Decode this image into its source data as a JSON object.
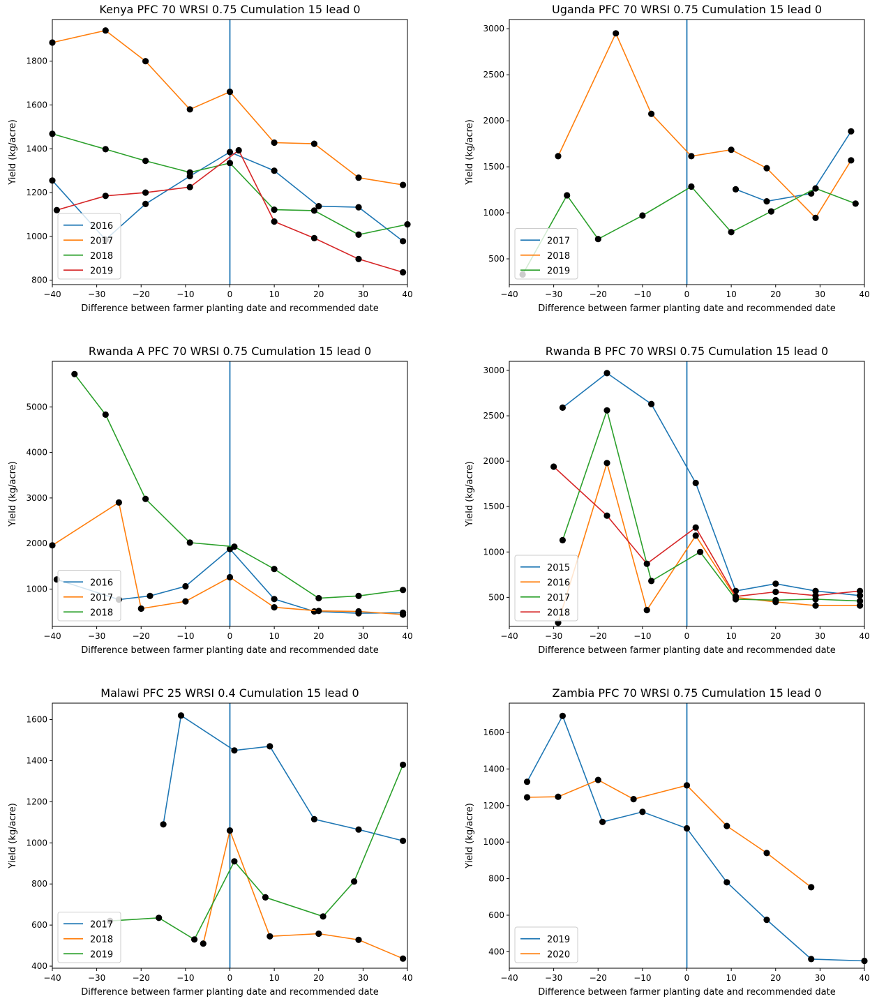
{
  "figure": {
    "palette": {
      "blue": "#1f77b4",
      "orange": "#ff7f0e",
      "green": "#2ca02c",
      "red": "#d62728",
      "marker": "#000000"
    },
    "vline_x": 0,
    "xticks": [
      "−40",
      "−30",
      "−20",
      "−10",
      "0",
      "10",
      "20",
      "30",
      "40"
    ]
  },
  "chart_data": [
    {
      "type": "line",
      "title": "Kenya PFC 70 WRSI 0.75 Cumulation 15 lead 0",
      "xlabel": "Difference between farmer planting date and recommended date",
      "ylabel": "Yield (kg/acre)",
      "xlim": [
        -40,
        40
      ],
      "ylim": [
        780,
        1990
      ],
      "yticks": [
        800,
        1000,
        1200,
        1400,
        1600,
        1800
      ],
      "legend_position": "lower-left",
      "series": [
        {
          "name": "2016",
          "color": "#1f77b4",
          "x": [
            -40,
            -28,
            -19,
            -9,
            0,
            10,
            20,
            29,
            39
          ],
          "y": [
            1255,
            985,
            1148,
            1275,
            1385,
            1300,
            1138,
            1133,
            978
          ]
        },
        {
          "name": "2017",
          "color": "#ff7f0e",
          "x": [
            -40,
            -28,
            -19,
            -9,
            0,
            10,
            19,
            29,
            39
          ],
          "y": [
            1885,
            1940,
            1800,
            1580,
            1660,
            1428,
            1423,
            1268,
            1235
          ]
        },
        {
          "name": "2018",
          "color": "#2ca02c",
          "x": [
            -40,
            -28,
            -19,
            -9,
            0,
            10,
            19,
            29,
            40
          ],
          "y": [
            1468,
            1398,
            1345,
            1292,
            1335,
            1122,
            1118,
            1008,
            1055
          ]
        },
        {
          "name": "2019",
          "color": "#d62728",
          "x": [
            -39,
            -28,
            -19,
            -9,
            2,
            10,
            19,
            29,
            39
          ],
          "y": [
            1120,
            1185,
            1200,
            1225,
            1393,
            1068,
            992,
            897,
            836
          ]
        }
      ]
    },
    {
      "type": "line",
      "title": "Uganda PFC 70 WRSI 0.75 Cumulation 15 lead 0",
      "xlabel": "Difference between farmer planting date and recommended date",
      "ylabel": "Yield (kg/acre)",
      "xlim": [
        -40,
        40
      ],
      "ylim": [
        220,
        3100
      ],
      "yticks": [
        500,
        1000,
        1500,
        2000,
        2500,
        3000
      ],
      "legend_position": "lower-left",
      "series": [
        {
          "name": "2017",
          "color": "#1f77b4",
          "x": [
            11,
            18,
            28,
            37
          ],
          "y": [
            1255,
            1125,
            1210,
            1885
          ]
        },
        {
          "name": "2018",
          "color": "#ff7f0e",
          "x": [
            -29,
            -16,
            -8,
            1,
            10,
            18,
            29,
            37
          ],
          "y": [
            1615,
            2950,
            2075,
            1615,
            1685,
            1485,
            945,
            1570
          ]
        },
        {
          "name": "2019",
          "color": "#2ca02c",
          "x": [
            -37,
            -27,
            -20,
            -10,
            1,
            10,
            19,
            29,
            38
          ],
          "y": [
            330,
            1190,
            715,
            970,
            1285,
            790,
            1015,
            1265,
            1100
          ]
        }
      ]
    },
    {
      "type": "line",
      "title": "Rwanda A PFC 70 WRSI 0.75 Cumulation 15 lead 0",
      "xlabel": "Difference between farmer planting date and recommended date",
      "ylabel": "Yield (kg/acre)",
      "xlim": [
        -40,
        40
      ],
      "ylim": [
        180,
        6000
      ],
      "yticks": [
        1000,
        2000,
        3000,
        4000,
        5000
      ],
      "legend_position": "lower-left",
      "series": [
        {
          "name": "2016",
          "color": "#1f77b4",
          "x": [
            -39,
            -25,
            -18,
            -10,
            0,
            10,
            19,
            29,
            39
          ],
          "y": [
            1210,
            770,
            850,
            1060,
            1880,
            780,
            510,
            470,
            480
          ]
        },
        {
          "name": "2017",
          "color": "#ff7f0e",
          "x": [
            -40,
            -25,
            -20,
            -10,
            0,
            10,
            20,
            29,
            39
          ],
          "y": [
            1960,
            2900,
            570,
            730,
            1260,
            600,
            520,
            510,
            440
          ]
        },
        {
          "name": "2018",
          "color": "#2ca02c",
          "x": [
            -35,
            -28,
            -19,
            -9,
            1,
            10,
            20,
            29,
            39
          ],
          "y": [
            5720,
            4830,
            2980,
            2020,
            1930,
            1440,
            800,
            850,
            980
          ]
        }
      ]
    },
    {
      "type": "line",
      "title": "Rwanda B PFC 70 WRSI 0.75 Cumulation 15 lead 0",
      "xlabel": "Difference between farmer planting date and recommended date",
      "ylabel": "Yield (kg/acre)",
      "xlim": [
        -40,
        40
      ],
      "ylim": [
        180,
        3100
      ],
      "yticks": [
        500,
        1000,
        1500,
        2000,
        2500,
        3000
      ],
      "legend_position": "lower-left",
      "series": [
        {
          "name": "2015",
          "color": "#1f77b4",
          "x": [
            -28,
            -18,
            -8,
            2,
            11,
            20,
            29,
            39
          ],
          "y": [
            2590,
            2970,
            2630,
            1760,
            570,
            650,
            570,
            520
          ]
        },
        {
          "name": "2016",
          "color": "#ff7f0e",
          "x": [
            -29,
            -18,
            -9,
            2,
            11,
            20,
            29,
            39
          ],
          "y": [
            220,
            1980,
            360,
            1180,
            500,
            450,
            410,
            410
          ]
        },
        {
          "name": "2017",
          "color": "#2ca02c",
          "x": [
            -28,
            -18,
            -8,
            3,
            11,
            20,
            29,
            39
          ],
          "y": [
            1130,
            2560,
            680,
            1000,
            480,
            470,
            480,
            460
          ]
        },
        {
          "name": "2018",
          "color": "#d62728",
          "x": [
            -30,
            -18,
            -9,
            2,
            11,
            20,
            29,
            39
          ],
          "y": [
            1940,
            1400,
            870,
            1270,
            510,
            560,
            520,
            570
          ]
        }
      ]
    },
    {
      "type": "line",
      "title": "Malawi PFC 25 WRSI 0.4 Cumulation 15 lead 0",
      "xlabel": "Difference between farmer planting date and recommended date",
      "ylabel": "Yield (kg/acre)",
      "xlim": [
        -40,
        40
      ],
      "ylim": [
        390,
        1680
      ],
      "yticks": [
        400,
        600,
        800,
        1000,
        1200,
        1400,
        1600
      ],
      "legend_position": "lower-left",
      "series": [
        {
          "name": "2017",
          "color": "#1f77b4",
          "x": [
            -15,
            -11,
            1,
            9,
            19,
            29,
            39
          ],
          "y": [
            1090,
            1620,
            1450,
            1470,
            1115,
            1065,
            1010
          ]
        },
        {
          "name": "2018",
          "color": "#ff7f0e",
          "x": [
            -6,
            0,
            9,
            20,
            29,
            39
          ],
          "y": [
            510,
            1060,
            545,
            558,
            528,
            437
          ]
        },
        {
          "name": "2019",
          "color": "#2ca02c",
          "x": [
            -27,
            -16,
            -8,
            1,
            8,
            21,
            28,
            39
          ],
          "y": [
            620,
            635,
            530,
            910,
            735,
            642,
            812,
            1380
          ]
        }
      ]
    },
    {
      "type": "line",
      "title": "Zambia PFC 70 WRSI 0.75 Cumulation 15 lead 0",
      "xlabel": "Difference between farmer planting date and recommended date",
      "ylabel": "Yield (kg/acre)",
      "xlim": [
        -40,
        40
      ],
      "ylim": [
        310,
        1760
      ],
      "yticks": [
        400,
        600,
        800,
        1000,
        1200,
        1400,
        1600
      ],
      "legend_position": "lower-left",
      "series": [
        {
          "name": "2019",
          "color": "#1f77b4",
          "x": [
            -36,
            -28,
            -19,
            -10,
            0,
            9,
            18,
            28,
            40
          ],
          "y": [
            1330,
            1690,
            1110,
            1165,
            1075,
            780,
            575,
            360,
            350
          ]
        },
        {
          "name": "2020",
          "color": "#ff7f0e",
          "x": [
            -36,
            -29,
            -20,
            -12,
            0,
            9,
            18,
            28
          ],
          "y": [
            1245,
            1248,
            1340,
            1235,
            1310,
            1088,
            940,
            753
          ]
        }
      ]
    }
  ]
}
